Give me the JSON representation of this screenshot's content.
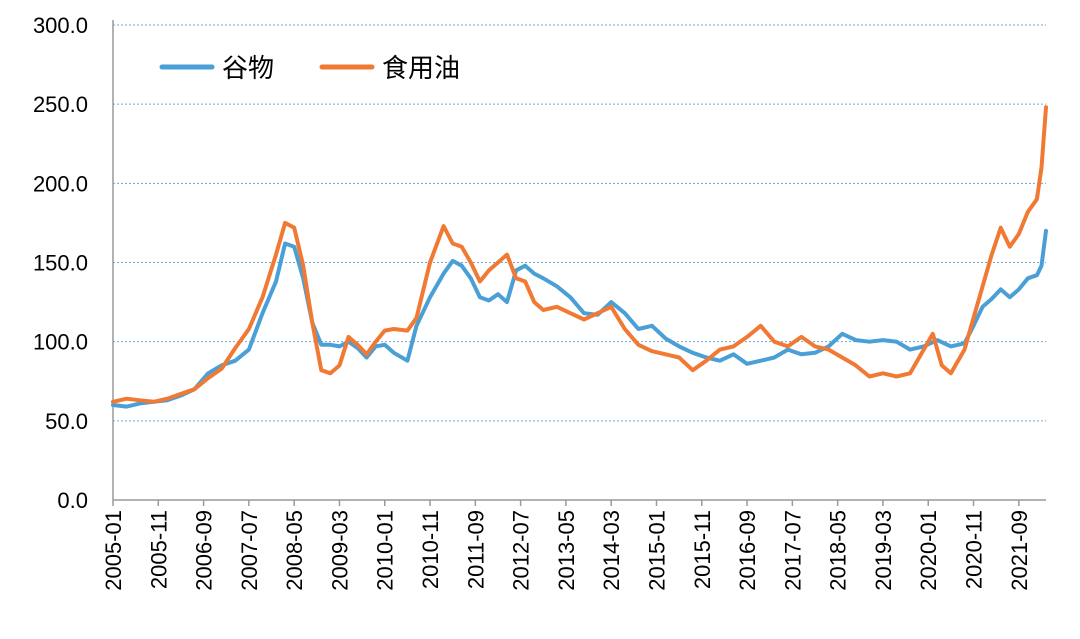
{
  "chart_data": {
    "type": "line",
    "title": "",
    "xlabel": "",
    "ylabel": "",
    "ylim": [
      0,
      300
    ],
    "yticks": [
      0,
      50,
      100,
      150,
      200,
      250,
      300
    ],
    "ytick_labels": [
      "0.0",
      "50.0",
      "100.0",
      "150.0",
      "200.0",
      "250.0",
      "300.0"
    ],
    "x_start": "2005-01",
    "x_end": "2022-03",
    "xtick_labels": [
      "2005-01",
      "2005-11",
      "2006-09",
      "2007-07",
      "2008-05",
      "2009-03",
      "2010-01",
      "2010-11",
      "2011-09",
      "2012-07",
      "2013-05",
      "2014-03",
      "2015-01",
      "2015-11",
      "2016-09",
      "2017-07",
      "2018-05",
      "2019-03",
      "2020-01",
      "2020-11",
      "2021-09"
    ],
    "grid": "horizontal dotted",
    "legend_position": "top-left",
    "series": [
      {
        "name": "谷物",
        "color": "#4A9FD6",
        "points": [
          [
            "2005-01",
            60
          ],
          [
            "2005-04",
            59
          ],
          [
            "2005-07",
            61
          ],
          [
            "2005-10",
            62
          ],
          [
            "2006-01",
            63
          ],
          [
            "2006-04",
            66
          ],
          [
            "2006-07",
            70
          ],
          [
            "2006-10",
            80
          ],
          [
            "2007-01",
            85
          ],
          [
            "2007-04",
            88
          ],
          [
            "2007-07",
            95
          ],
          [
            "2007-10",
            118
          ],
          [
            "2008-01",
            138
          ],
          [
            "2008-03",
            162
          ],
          [
            "2008-05",
            160
          ],
          [
            "2008-07",
            140
          ],
          [
            "2008-09",
            112
          ],
          [
            "2008-11",
            98
          ],
          [
            "2009-01",
            98
          ],
          [
            "2009-03",
            97
          ],
          [
            "2009-05",
            100
          ],
          [
            "2009-07",
            96
          ],
          [
            "2009-09",
            90
          ],
          [
            "2009-11",
            97
          ],
          [
            "2010-01",
            98
          ],
          [
            "2010-03",
            93
          ],
          [
            "2010-06",
            88
          ],
          [
            "2010-08",
            110
          ],
          [
            "2010-11",
            128
          ],
          [
            "2011-02",
            143
          ],
          [
            "2011-04",
            151
          ],
          [
            "2011-06",
            148
          ],
          [
            "2011-08",
            140
          ],
          [
            "2011-10",
            128
          ],
          [
            "2011-12",
            126
          ],
          [
            "2012-02",
            130
          ],
          [
            "2012-04",
            125
          ],
          [
            "2012-06",
            145
          ],
          [
            "2012-08",
            148
          ],
          [
            "2012-10",
            143
          ],
          [
            "2012-12",
            140
          ],
          [
            "2013-03",
            135
          ],
          [
            "2013-06",
            128
          ],
          [
            "2013-09",
            118
          ],
          [
            "2013-12",
            117
          ],
          [
            "2014-03",
            125
          ],
          [
            "2014-06",
            118
          ],
          [
            "2014-09",
            108
          ],
          [
            "2014-12",
            110
          ],
          [
            "2015-03",
            102
          ],
          [
            "2015-06",
            97
          ],
          [
            "2015-09",
            93
          ],
          [
            "2015-12",
            90
          ],
          [
            "2016-03",
            88
          ],
          [
            "2016-06",
            92
          ],
          [
            "2016-09",
            86
          ],
          [
            "2016-12",
            88
          ],
          [
            "2017-03",
            90
          ],
          [
            "2017-06",
            95
          ],
          [
            "2017-09",
            92
          ],
          [
            "2017-12",
            93
          ],
          [
            "2018-03",
            97
          ],
          [
            "2018-06",
            105
          ],
          [
            "2018-09",
            101
          ],
          [
            "2018-12",
            100
          ],
          [
            "2019-03",
            101
          ],
          [
            "2019-06",
            100
          ],
          [
            "2019-09",
            95
          ],
          [
            "2019-12",
            97
          ],
          [
            "2020-03",
            101
          ],
          [
            "2020-06",
            97
          ],
          [
            "2020-09",
            99
          ],
          [
            "2020-11",
            110
          ],
          [
            "2021-01",
            122
          ],
          [
            "2021-03",
            127
          ],
          [
            "2021-05",
            133
          ],
          [
            "2021-07",
            128
          ],
          [
            "2021-09",
            133
          ],
          [
            "2021-11",
            140
          ],
          [
            "2022-01",
            142
          ],
          [
            "2022-02",
            148
          ],
          [
            "2022-03",
            170
          ]
        ]
      },
      {
        "name": "食用油",
        "color": "#F07A34",
        "points": [
          [
            "2005-01",
            62
          ],
          [
            "2005-04",
            64
          ],
          [
            "2005-07",
            63
          ],
          [
            "2005-10",
            62
          ],
          [
            "2006-01",
            64
          ],
          [
            "2006-04",
            67
          ],
          [
            "2006-07",
            70
          ],
          [
            "2006-10",
            77
          ],
          [
            "2007-01",
            83
          ],
          [
            "2007-04",
            96
          ],
          [
            "2007-07",
            108
          ],
          [
            "2007-10",
            128
          ],
          [
            "2008-01",
            155
          ],
          [
            "2008-03",
            175
          ],
          [
            "2008-05",
            172
          ],
          [
            "2008-07",
            148
          ],
          [
            "2008-09",
            112
          ],
          [
            "2008-11",
            82
          ],
          [
            "2009-01",
            80
          ],
          [
            "2009-03",
            85
          ],
          [
            "2009-05",
            103
          ],
          [
            "2009-07",
            98
          ],
          [
            "2009-09",
            92
          ],
          [
            "2009-11",
            100
          ],
          [
            "2010-01",
            107
          ],
          [
            "2010-03",
            108
          ],
          [
            "2010-06",
            107
          ],
          [
            "2010-08",
            115
          ],
          [
            "2010-11",
            150
          ],
          [
            "2011-02",
            173
          ],
          [
            "2011-04",
            162
          ],
          [
            "2011-06",
            160
          ],
          [
            "2011-08",
            150
          ],
          [
            "2011-10",
            138
          ],
          [
            "2011-12",
            145
          ],
          [
            "2012-02",
            150
          ],
          [
            "2012-04",
            155
          ],
          [
            "2012-06",
            140
          ],
          [
            "2012-08",
            138
          ],
          [
            "2012-10",
            125
          ],
          [
            "2012-12",
            120
          ],
          [
            "2013-03",
            122
          ],
          [
            "2013-06",
            118
          ],
          [
            "2013-09",
            114
          ],
          [
            "2013-12",
            118
          ],
          [
            "2014-03",
            122
          ],
          [
            "2014-06",
            108
          ],
          [
            "2014-09",
            98
          ],
          [
            "2014-12",
            94
          ],
          [
            "2015-03",
            92
          ],
          [
            "2015-06",
            90
          ],
          [
            "2015-09",
            82
          ],
          [
            "2015-12",
            88
          ],
          [
            "2016-03",
            95
          ],
          [
            "2016-06",
            97
          ],
          [
            "2016-09",
            103
          ],
          [
            "2016-12",
            110
          ],
          [
            "2017-03",
            100
          ],
          [
            "2017-06",
            97
          ],
          [
            "2017-09",
            103
          ],
          [
            "2017-12",
            97
          ],
          [
            "2018-03",
            95
          ],
          [
            "2018-06",
            90
          ],
          [
            "2018-09",
            85
          ],
          [
            "2018-12",
            78
          ],
          [
            "2019-03",
            80
          ],
          [
            "2019-06",
            78
          ],
          [
            "2019-09",
            80
          ],
          [
            "2019-12",
            95
          ],
          [
            "2020-02",
            105
          ],
          [
            "2020-04",
            85
          ],
          [
            "2020-06",
            80
          ],
          [
            "2020-09",
            95
          ],
          [
            "2020-11",
            115
          ],
          [
            "2021-01",
            135
          ],
          [
            "2021-03",
            155
          ],
          [
            "2021-05",
            172
          ],
          [
            "2021-07",
            160
          ],
          [
            "2021-09",
            168
          ],
          [
            "2021-11",
            182
          ],
          [
            "2022-01",
            190
          ],
          [
            "2022-02",
            210
          ],
          [
            "2022-03",
            248
          ]
        ]
      }
    ]
  }
}
